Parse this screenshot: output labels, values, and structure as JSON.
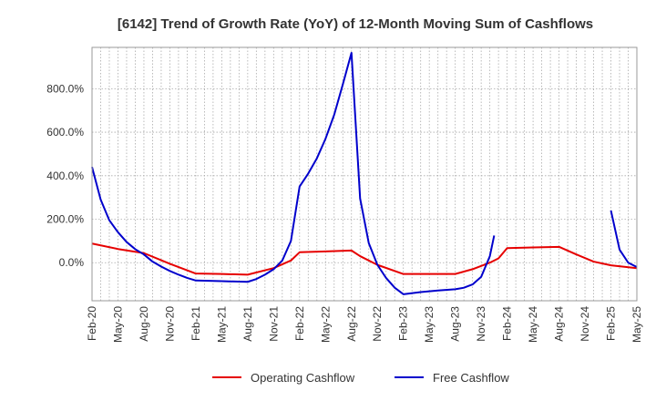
{
  "chart_data": {
    "type": "line",
    "title": "[6142]  Trend of Growth Rate (YoY) of 12-Month Moving Sum of Cashflows",
    "xlabel": "",
    "ylabel": "",
    "x_start": "Feb-20",
    "x_ticks": [
      "Feb-20",
      "May-20",
      "Aug-20",
      "Nov-20",
      "Feb-21",
      "May-21",
      "Aug-21",
      "Nov-21",
      "Feb-22",
      "May-22",
      "Aug-22",
      "Nov-22",
      "Feb-23",
      "May-23",
      "Aug-23",
      "Nov-23",
      "Feb-24",
      "May-24",
      "Aug-24",
      "Nov-24",
      "Feb-25",
      "May-25"
    ],
    "y_ticks": [
      0,
      200,
      400,
      600,
      800
    ],
    "y_tick_labels": [
      "0.0%",
      "200.0%",
      "400.0%",
      "600.0%",
      "800.0%"
    ],
    "ylim": [
      -175,
      990
    ],
    "x_range_months": [
      0,
      63
    ],
    "grid": true,
    "legend_position": "bottom",
    "series": [
      {
        "name": "Operating Cashflow",
        "color": "#e60000",
        "points": [
          [
            0,
            88
          ],
          [
            3,
            63
          ],
          [
            6,
            44
          ],
          [
            9,
            -5
          ],
          [
            12,
            -50
          ],
          [
            15,
            -52
          ],
          [
            18,
            -55
          ],
          [
            21,
            -25
          ],
          [
            23,
            10
          ],
          [
            24,
            48
          ],
          [
            27,
            52
          ],
          [
            30,
            56
          ],
          [
            31,
            30
          ],
          [
            33,
            -10
          ],
          [
            36,
            -52
          ],
          [
            39,
            -52
          ],
          [
            42,
            -52
          ],
          [
            44,
            -30
          ],
          [
            46,
            0
          ],
          [
            47,
            20
          ],
          [
            48,
            67
          ],
          [
            51,
            70
          ],
          [
            54,
            73
          ],
          [
            56,
            38
          ],
          [
            58,
            5
          ],
          [
            60,
            -12
          ],
          [
            63,
            -25
          ]
        ]
      },
      {
        "name": "Free Cashflow",
        "color": "#0000cc",
        "points": [
          [
            0,
            440
          ],
          [
            1,
            290
          ],
          [
            2,
            195
          ],
          [
            3,
            140
          ],
          [
            4,
            95
          ],
          [
            5,
            62
          ],
          [
            6,
            38
          ],
          [
            7,
            5
          ],
          [
            8,
            -18
          ],
          [
            9,
            -38
          ],
          [
            10,
            -55
          ],
          [
            11,
            -70
          ],
          [
            12,
            -82
          ],
          [
            15,
            -85
          ],
          [
            18,
            -88
          ],
          [
            19,
            -75
          ],
          [
            20,
            -55
          ],
          [
            21,
            -30
          ],
          [
            22,
            10
          ],
          [
            23,
            100
          ],
          [
            24,
            350
          ],
          [
            25,
            410
          ],
          [
            26,
            480
          ],
          [
            27,
            570
          ],
          [
            28,
            680
          ],
          [
            29,
            820
          ],
          [
            30,
            965
          ],
          [
            31,
            295
          ],
          [
            32,
            90
          ],
          [
            33,
            -10
          ],
          [
            34,
            -70
          ],
          [
            35,
            -115
          ],
          [
            36,
            -145
          ],
          [
            38,
            -135
          ],
          [
            40,
            -128
          ],
          [
            42,
            -122
          ],
          [
            43,
            -115
          ],
          [
            44,
            -100
          ],
          [
            45,
            -65
          ],
          [
            46,
            30
          ],
          [
            46.5,
            125
          ],
          [
            null,
            null
          ],
          [
            60,
            240
          ],
          [
            61,
            60
          ],
          [
            62,
            0
          ],
          [
            63,
            -20
          ]
        ]
      }
    ]
  }
}
